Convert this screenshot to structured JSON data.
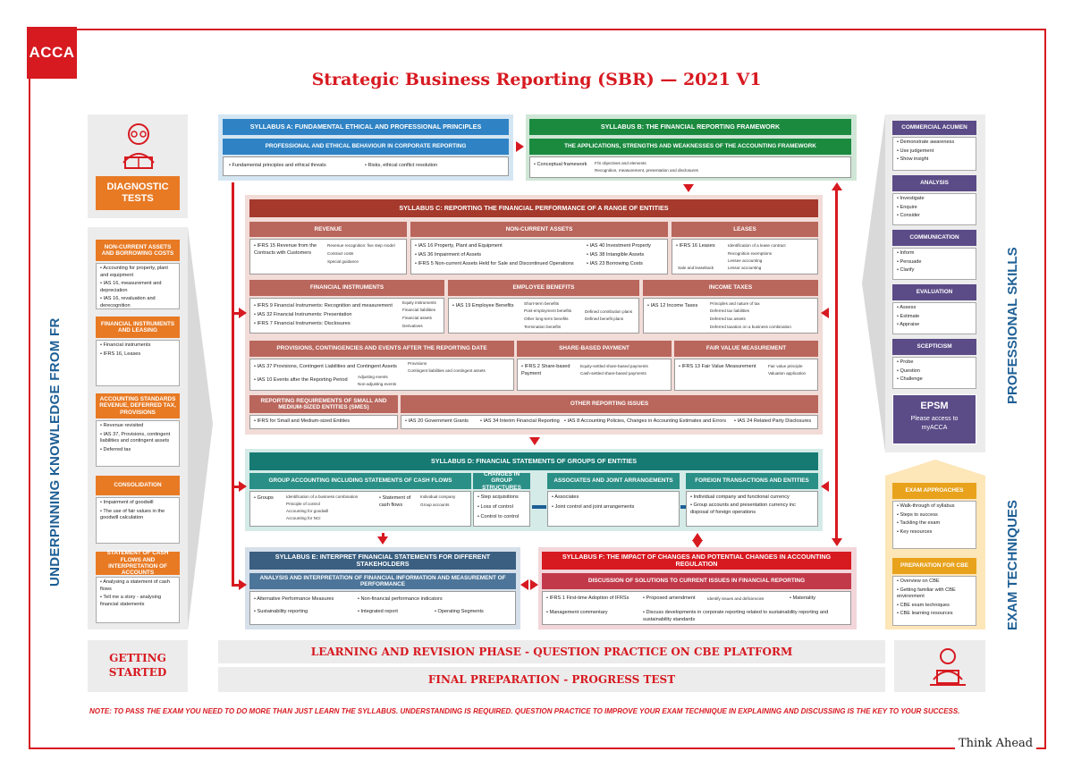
{
  "brand": {
    "logo": "ACCA",
    "tagline": "Think Ahead"
  },
  "title": "Strategic Business Reporting (SBR) — 2021 V1",
  "left": {
    "diagnostic": "DIAGNOSTIC TESTS",
    "side_label": "UNDERPINNING KNOWLEDGE FROM FR",
    "groups": [
      {
        "title": "NON-CURRENT ASSETS AND BORROWING COSTS",
        "items": [
          "Accounting for property, plant and equipment",
          "IAS 16, measurement and depreciation",
          "IAS 16, revaluation and derecognition"
        ]
      },
      {
        "title": "FINANCIAL INSTRUMENTS AND LEASING",
        "items": [
          "Financial instruments",
          "IFRS 16, Leases"
        ]
      },
      {
        "title": "ACCOUNTING STANDARDS REVENUE, DEFERRED TAX, PROVISIONS",
        "items": [
          "Revenue revisited",
          "IAS 37, Provisions, contingent liabilities and contingent assets",
          "Deferred tax"
        ]
      },
      {
        "title": "CONSOLIDATION",
        "items": [
          "Impairment of goodwill",
          "The use of fair values in the goodwill calculation"
        ]
      },
      {
        "title": "STATEMENT OF CASH FLOWS AND INTERPRETATION OF ACCOUNTS",
        "items": [
          "Analysing a statement of cash flows",
          "Tell me a story - analysing financial statements"
        ]
      }
    ],
    "getting_started": "GETTING STARTED"
  },
  "a": {
    "title": "SYLLABUS A: FUNDAMENTAL ETHICAL AND PROFESSIONAL PRINCIPLES",
    "sub": "PROFESSIONAL AND ETHICAL BEHAVIOUR IN CORPORATE REPORTING",
    "items": [
      "Fundamental principles and ethical threats",
      "Risks, ethical conflict resolution"
    ]
  },
  "b": {
    "title": "SYLLABUS B: THE FINANCIAL REPORTING FRAMEWORK",
    "sub": "THE APPLICATIONS, STRENGTHS AND WEAKNESSES OF THE ACCOUNTING FRAMEWORK",
    "item": "Conceptual framework",
    "subs": [
      "F/S objectives and elements",
      "Recognition, measurement, presentation and disclosures"
    ]
  },
  "c": {
    "title": "SYLLABUS C: REPORTING THE FINANCIAL PERFORMANCE OF A RANGE OF ENTITIES",
    "revenue": {
      "title": "REVENUE",
      "item": "IFRS 15 Revenue from the Contracts with Customers",
      "subs": [
        "Revenue recognition: five step model",
        "Contract costs",
        "Special guidance"
      ]
    },
    "nca": {
      "title": "NON-CURRENT ASSETS",
      "items": [
        "IAS 16 Property, Plant and Equipment",
        "IAS 36 Impairment of Assets",
        "IFRS 5 Non-current Assets Held for Sale and Discontinued Operations",
        "IAS 40 Investment Property",
        "IAS 38 Intangible Assets",
        "IAS 23 Borrowing Costs"
      ]
    },
    "leases": {
      "title": "LEASES",
      "item": "IFRS 16 Leases",
      "subs": [
        "Identification of a lease contract",
        "Recognition exemptions",
        "Lessee accounting",
        "Lessor accounting"
      ],
      "extra": "Sale and leaseback"
    },
    "fi": {
      "title": "FINANCIAL INSTRUMENTS",
      "items": [
        "IFRS 9 Financial Instruments: Recognition and measurement",
        "IAS 32 Financial Instruments: Presentation",
        "IFRS 7 Financial Instruments: Disclosures"
      ],
      "subs": [
        "Equity instruments",
        "Financial liabilities",
        "Financial assets",
        "Derivatives"
      ]
    },
    "eb": {
      "title": "EMPLOYEE BENEFITS",
      "item": "IAS 19 Employee Benefits",
      "subs": [
        "Short-term benefits",
        "Post-employment benefits",
        "Other long-term benefits",
        "Termination benefits"
      ],
      "subs2": [
        "Defined contribution plans",
        "Defined benefit plans"
      ]
    },
    "tax": {
      "title": "INCOME TAXES",
      "item": "IAS 12 Income Taxes",
      "subs": [
        "Principles and nature of tax",
        "Deferred tax liabilities",
        "Deferred tax assets",
        "Deferred taxation on a business combination"
      ]
    },
    "prov": {
      "title": "PROVISIONS, CONTINGENCIES AND EVENTS AFTER THE REPORTING DATE",
      "items": [
        "IAS 37 Provisions, Contingent Liabilities and Contingent Assets",
        "IAS 10 Events after the Reporting Period"
      ],
      "subs": [
        "Provisions",
        "Contingent liabilities and contingent assets"
      ],
      "subs2": [
        "Adjusting events",
        "Non-adjusting events"
      ]
    },
    "sbp": {
      "title": "SHARE-BASED PAYMENT",
      "item": "IFRS 2 Share-based Payment",
      "subs": [
        "Equity-settled share-based payments",
        "Cash-settled share-based payments"
      ]
    },
    "fv": {
      "title": "FAIR VALUE MEASUREMENT",
      "item": "IFRS 13 Fair Value Measurement",
      "subs": [
        "Fair value principle",
        "Valuation application"
      ]
    },
    "sme": {
      "title": "REPORTING REQUIREMENTS OF SMALL AND MEDIUM-SIZED ENTITIES (SMES)",
      "item": "IFRS for Small and Medium-sized Entities"
    },
    "other": {
      "title": "OTHER REPORTING ISSUES",
      "items": [
        "IAS 20 Government Grants",
        "IAS 34 Interim Financial Reporting",
        "IAS 8 Accounting Policies, Changes in Accounting Estimates and Errors",
        "IAS 24 Related Party Disclosures"
      ]
    }
  },
  "d": {
    "title": "SYLLABUS D: FINANCIAL STATEMENTS OF GROUPS OF ENTITIES",
    "g1": {
      "title": "GROUP ACCOUNTING INCLUDING STATEMENTS OF CASH FLOWS",
      "item": "Groups",
      "subs": [
        "Identification of a business combination",
        "Principle of control",
        "Accounting for goodwill",
        "Accounting for NCI"
      ],
      "item2": "Statement of cash flows",
      "subs2": [
        "Individual company",
        "Group accounts"
      ]
    },
    "g2": {
      "title": "CHANGES IN GROUP STRUCTURES",
      "items": [
        "Step acquisitions",
        "Loss of control",
        "Control to control"
      ]
    },
    "g3": {
      "title": "ASSOCIATES AND JOINT ARRANGEMENTS",
      "items": [
        "Associates",
        "Joint control and joint arrangements"
      ]
    },
    "g4": {
      "title": "FOREIGN TRANSACTIONS AND ENTITIES",
      "items": [
        "Individual company and functional currency",
        "Group accounts and presentation currency inc disposal of foreign operations"
      ]
    }
  },
  "e": {
    "title": "SYLLABUS E: INTERPRET FINANCIAL STATEMENTS FOR DIFFERENT STAKEHOLDERS",
    "sub": "ANALYSIS AND INTERPRETATION OF FINANCIAL INFORMATION AND MEASUREMENT OF PERFORMANCE",
    "items": [
      "Alternative Performance Measures",
      "Non-financial performance indicators",
      "Sustainability reporting",
      "Integrated report",
      "Operating Segments"
    ]
  },
  "f": {
    "title": "SYLLABUS F: THE IMPACT OF CHANGES AND POTENTIAL CHANGES IN ACCOUNTING REGULATION",
    "sub": "DISCUSSION OF SOLUTIONS TO CURRENT ISSUES IN FINANCIAL REPORTING",
    "items": [
      "IFRS 1 First-time Adoption of IFRSs",
      "Proposed amendment",
      "Materiality",
      "Management commentary",
      "Discuss developments in corporate reporting related to sustainability reporting and sustainability standards"
    ],
    "sub_item": "Identify issues and deficiencies"
  },
  "right": {
    "side_label": "PROFESSIONAL SKILLS",
    "exam_label": "EXAM TECHNIQUES",
    "skills": [
      {
        "title": "COMMERCIAL ACUMEN",
        "items": [
          "Demonstrate awareness",
          "Use judgement",
          "Show insight"
        ]
      },
      {
        "title": "ANALYSIS",
        "items": [
          "Investigate",
          "Enquire",
          "Consider"
        ]
      },
      {
        "title": "COMMUNICATION",
        "items": [
          "Inform",
          "Persuade",
          "Clarify"
        ]
      },
      {
        "title": "EVALUATION",
        "items": [
          "Assess",
          "Estimate",
          "Appraise"
        ]
      },
      {
        "title": "SCEPTICISM",
        "items": [
          "Probe",
          "Question",
          "Challenge"
        ]
      }
    ],
    "epsm": {
      "title": "EPSM",
      "text": "Please access to myACCA"
    },
    "exam": [
      {
        "title": "EXAM APPROACHES",
        "items": [
          "Walk-through of syllabus",
          "Steps to success",
          "Tackling the exam",
          "Key resources"
        ]
      },
      {
        "title": "PREPARATION FOR CBE",
        "items": [
          "Overview on CBE",
          "Getting familiar with CBE environment",
          "CBE exam techniques",
          "CBE learning resources"
        ]
      }
    ]
  },
  "bottom": {
    "phase1": "LEARNING AND REVISION PHASE - QUESTION PRACTICE ON CBE PLATFORM",
    "phase2": "FINAL PREPARATION - PROGRESS TEST"
  },
  "note": "NOTE:  TO PASS THE EXAM YOU NEED TO DO MORE THAN JUST LEARN THE SYLLABUS. UNDERSTANDING IS REQUIRED. QUESTION PRACTICE TO IMPROVE YOUR EXAM TECHNIQUE IN EXPLAINING AND DISCUSSING IS THE KEY TO YOUR SUCCESS."
}
